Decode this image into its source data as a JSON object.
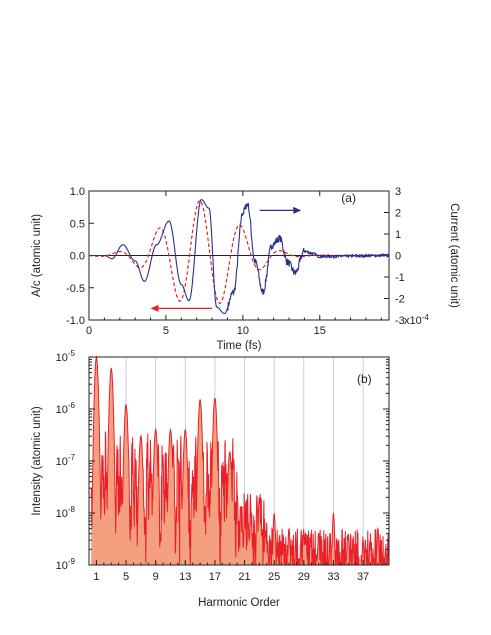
{
  "chart_data": [
    {
      "panel": "(a)",
      "type": "line",
      "xlabel": "Time (fs)",
      "ylabel_left": "A/c (atomic unit)",
      "ylabel_right": "Current (atomic unit)",
      "right_axis_exponent": "x10",
      "right_axis_exponent_power": "-4",
      "xlim": [
        0,
        19.5
      ],
      "ylim_left": [
        -1.0,
        1.0
      ],
      "ylim_right": [
        -3,
        3
      ],
      "x_ticks": [
        "0",
        "5",
        "10",
        "15"
      ],
      "x_tick_values": [
        0,
        5,
        10,
        15
      ],
      "y_ticks_left": [
        "1.0",
        "0.5",
        "0.0",
        "-0.5",
        "-1.0"
      ],
      "y_tick_values_left": [
        1.0,
        0.5,
        0.0,
        -0.5,
        -1.0
      ],
      "y_ticks_right": [
        "3",
        "2",
        "1",
        "0",
        "-1",
        "-2",
        "-3"
      ],
      "y_tick_values_right": [
        3,
        2,
        1,
        0,
        -1,
        -2,
        -3
      ],
      "series": [
        {
          "axis": "left",
          "color": "#e8202a",
          "style": "dashed",
          "envelope_center_fs": 7.3,
          "envelope_width_fs": 3.3,
          "period_fs": 2.67,
          "peak_amplitude": 0.85,
          "peaks": [
            {
              "x": 3.1,
              "y": -0.4
            },
            {
              "x": 4.5,
              "y": 0.42
            },
            {
              "x": 5.8,
              "y": -0.65
            },
            {
              "x": 7.2,
              "y": 0.82
            },
            {
              "x": 8.5,
              "y": -0.8
            },
            {
              "x": 9.8,
              "y": 0.7
            },
            {
              "x": 11.2,
              "y": -0.55
            },
            {
              "x": 12.5,
              "y": 0.4
            },
            {
              "x": 13.8,
              "y": -0.22
            },
            {
              "x": 15.2,
              "y": 0.1
            }
          ]
        },
        {
          "axis": "right",
          "color": "#2a2f8c",
          "style": "solid",
          "points": [
            [
              0,
              0
            ],
            [
              1,
              0
            ],
            [
              1.5,
              -0.15
            ],
            [
              2.2,
              0.5
            ],
            [
              3,
              -0.25
            ],
            [
              3.6,
              -1.2
            ],
            [
              4.4,
              0.5
            ],
            [
              5.2,
              1.6
            ],
            [
              6,
              -1.35
            ],
            [
              6.5,
              -2.1
            ],
            [
              7.3,
              2.6
            ],
            [
              7.8,
              2.2
            ],
            [
              8.3,
              -2.4
            ],
            [
              8.8,
              -2.7
            ],
            [
              9.4,
              -1.7
            ],
            [
              10,
              2.0
            ],
            [
              10.3,
              2.4
            ],
            [
              10.8,
              -0.3
            ],
            [
              11.3,
              -1.7
            ],
            [
              11.9,
              0.5
            ],
            [
              12.4,
              0.8
            ],
            [
              12.9,
              -0.3
            ],
            [
              13.4,
              -0.8
            ],
            [
              14,
              0.2
            ],
            [
              14.5,
              0.1
            ],
            [
              15,
              -0.05
            ],
            [
              19.5,
              0
            ]
          ]
        }
      ],
      "annotations": [
        {
          "text": "(a)",
          "x": 16.4,
          "y": 0.83
        },
        {
          "arrow": "right",
          "color": "#2a2f8c",
          "x1": 11.1,
          "x2": 13.8,
          "y_right": 2.1
        },
        {
          "arrow": "left",
          "color": "#e8202a",
          "x1": 8.0,
          "x2": 4.0,
          "y": -0.82
        }
      ]
    },
    {
      "panel": "(b)",
      "type": "area",
      "xlabel": "Harmonic Order",
      "ylabel": "Intensity (atomic unit)",
      "yscale": "log",
      "xlim": [
        0,
        40.5
      ],
      "ylim": [
        1e-09,
        1e-05
      ],
      "x_ticks": [
        "1",
        "5",
        "9",
        "13",
        "17",
        "21",
        "25",
        "29",
        "33",
        "37"
      ],
      "x_tick_values": [
        1,
        5,
        9,
        13,
        17,
        21,
        25,
        29,
        33,
        37
      ],
      "y_tick_mantissa": "10",
      "y_tick_powers": [
        "-5",
        "-6",
        "-7",
        "-8",
        "-9"
      ],
      "y_tick_values": [
        1e-05,
        1e-06,
        1e-07,
        1e-08,
        1e-09
      ],
      "fill_color": "#f4a07e",
      "line_color": "#e8202a",
      "odd_gridlines": true,
      "peaks": [
        {
          "order": 1,
          "intensity": 1e-05
        },
        {
          "order": 3,
          "intensity": 6e-06
        },
        {
          "order": 5,
          "intensity": 1.2e-06
        },
        {
          "order": 7,
          "intensity": 3e-07
        },
        {
          "order": 9,
          "intensity": 4e-07
        },
        {
          "order": 11,
          "intensity": 4e-07
        },
        {
          "order": 13,
          "intensity": 4e-07
        },
        {
          "order": 15,
          "intensity": 1.5e-06
        },
        {
          "order": 17,
          "intensity": 1.6e-06
        },
        {
          "order": 19,
          "intensity": 1.5e-07
        },
        {
          "order": 21,
          "intensity": 6e-09
        },
        {
          "order": 23,
          "intensity": 2e-08
        },
        {
          "order": 25,
          "intensity": 1e-08
        },
        {
          "order": 27,
          "intensity": 5e-09
        },
        {
          "order": 29,
          "intensity": 4e-09
        },
        {
          "order": 31,
          "intensity": 4e-09
        },
        {
          "order": 33,
          "intensity": 1e-08
        },
        {
          "order": 35,
          "intensity": 4e-09
        },
        {
          "order": 37,
          "intensity": 3e-09
        },
        {
          "order": 39,
          "intensity": 5e-09
        }
      ],
      "annotations": [
        {
          "text": "(b)"
        }
      ]
    }
  ]
}
